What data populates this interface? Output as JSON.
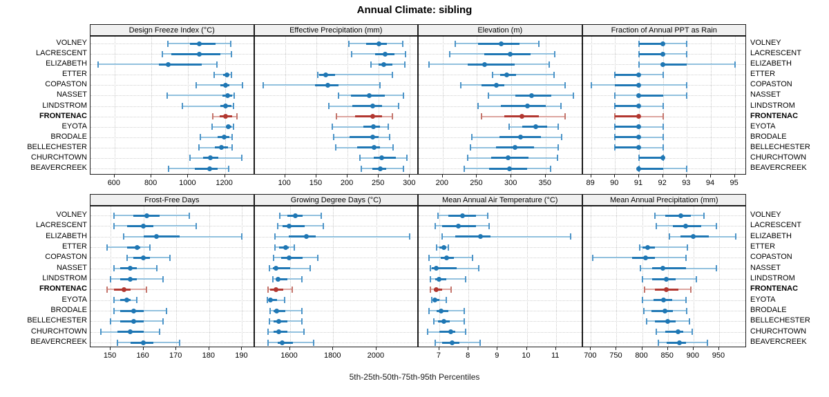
{
  "title": "Annual Climate: sibling",
  "footer": "5th-25th-50th-75th-95th Percentiles",
  "colors": {
    "blue_main": "#1f77b4",
    "blue_light": "#92c1de",
    "blue_cap": "#4c94c8",
    "red_main": "#b23730",
    "red_light": "#dda59f",
    "red_cap": "#c4756c",
    "strip_bg": "#f0f0f0",
    "grid": "#c9c9c9",
    "panel_border": "#1a1a1a"
  },
  "chart_data": {
    "type": "scatter",
    "subtype": "trellis percentile dotplot (whisker 5th-95th, bar 25th-75th, dot 50th)",
    "layout": {
      "rows": 2,
      "cols": 4,
      "grid": "dotted",
      "legend": "none"
    },
    "title": "Annual Climate: sibling",
    "caption": "5th-25th-50th-75th-95th Percentiles",
    "categories": [
      "VOLNEY",
      "LACRESCENT",
      "ELIZABETH",
      "ETTER",
      "COPASTON",
      "NASSET",
      "LINDSTROM",
      "FRONTENAC",
      "EYOTA",
      "BRODALE",
      "BELLECHESTER",
      "CHURCHTOWN",
      "BEAVERCREEK"
    ],
    "highlight": "FRONTENAC",
    "panels": [
      {
        "title": "Design Freeze Index (°C)",
        "xlim": [
          469,
          1361
        ],
        "ticks": [
          600,
          800,
          1000,
          1200
        ],
        "values": [
          [
            890,
            1010,
            1060,
            1150,
            1230
          ],
          [
            860,
            910,
            1060,
            1175,
            1235
          ],
          [
            510,
            840,
            890,
            1075,
            1155
          ],
          [
            1140,
            1190,
            1210,
            1225,
            1235
          ],
          [
            1045,
            1175,
            1205,
            1225,
            1295
          ],
          [
            885,
            1185,
            1215,
            1240,
            1250
          ],
          [
            970,
            1175,
            1205,
            1235,
            1245
          ],
          [
            1135,
            1170,
            1205,
            1240,
            1265
          ],
          [
            1130,
            1205,
            1220,
            1235,
            1245
          ],
          [
            1065,
            1160,
            1195,
            1225,
            1240
          ],
          [
            1060,
            1145,
            1180,
            1215,
            1240
          ],
          [
            1010,
            1080,
            1120,
            1165,
            1290
          ],
          [
            895,
            1035,
            1115,
            1160,
            1220
          ]
        ]
      },
      {
        "title": "Effective Precipitation (mm)",
        "xlim": [
          51,
          314
        ],
        "ticks": [
          100,
          150,
          200,
          250,
          300
        ],
        "values": [
          [
            202,
            230,
            250,
            263,
            288
          ],
          [
            207,
            244,
            260,
            275,
            293
          ],
          [
            238,
            250,
            258,
            272,
            292
          ],
          [
            152,
            155,
            165,
            180,
            272
          ],
          [
            65,
            148,
            168,
            185,
            252
          ],
          [
            186,
            205,
            235,
            260,
            290
          ],
          [
            170,
            208,
            240,
            255,
            282
          ],
          [
            182,
            212,
            240,
            255,
            272
          ],
          [
            176,
            225,
            241,
            252,
            265
          ],
          [
            178,
            203,
            240,
            250,
            268
          ],
          [
            181,
            215,
            243,
            252,
            273
          ],
          [
            220,
            242,
            255,
            278,
            295
          ],
          [
            222,
            240,
            253,
            262,
            290
          ]
        ]
      },
      {
        "title": "Elevation (m)",
        "xlim": [
          165,
          404
        ],
        "ticks": [
          200,
          250,
          300,
          350
        ],
        "values": [
          [
            218,
            252,
            285,
            312,
            340
          ],
          [
            210,
            261,
            298,
            328,
            363
          ],
          [
            180,
            236,
            261,
            305,
            355
          ],
          [
            273,
            284,
            293,
            307,
            362
          ],
          [
            226,
            257,
            278,
            290,
            378
          ],
          [
            267,
            306,
            330,
            358,
            390
          ],
          [
            252,
            285,
            323,
            350,
            372
          ],
          [
            257,
            290,
            315,
            340,
            378
          ],
          [
            297,
            316,
            336,
            352,
            368
          ],
          [
            242,
            283,
            313,
            343,
            373
          ],
          [
            240,
            278,
            305,
            333,
            368
          ],
          [
            236,
            271,
            295,
            325,
            367
          ],
          [
            231,
            268,
            297,
            323,
            357
          ]
        ]
      },
      {
        "title": "Fraction of Annual PPT as Rain",
        "xlim": [
          88.65,
          95.5
        ],
        "ticks": [
          89,
          90,
          91,
          92,
          93,
          94,
          95
        ],
        "values": [
          [
            91,
            91,
            92,
            92,
            93
          ],
          [
            91,
            91,
            92,
            92,
            93
          ],
          [
            91,
            92,
            92,
            93,
            95
          ],
          [
            90,
            90,
            91,
            91,
            92
          ],
          [
            89,
            90,
            91,
            91,
            93
          ],
          [
            90,
            91,
            91,
            92,
            93
          ],
          [
            90,
            90,
            91,
            91,
            92
          ],
          [
            90,
            90,
            91,
            91,
            92
          ],
          [
            90,
            90,
            91,
            91,
            92
          ],
          [
            90,
            90,
            91,
            91,
            92
          ],
          [
            90,
            90,
            91,
            91,
            92
          ],
          [
            91,
            91,
            92,
            92,
            92
          ],
          [
            91,
            91,
            91,
            92,
            93
          ]
        ]
      },
      {
        "title": "Frost-Free Days",
        "xlim": [
          143.9,
          193.8
        ],
        "ticks": [
          150,
          160,
          170,
          180,
          190
        ],
        "values": [
          [
            151,
            157,
            161,
            165,
            174
          ],
          [
            151,
            155,
            160,
            163,
            176
          ],
          [
            154,
            160,
            164,
            171,
            190
          ],
          [
            149,
            155,
            158,
            159,
            162
          ],
          [
            155,
            157,
            160,
            162,
            168
          ],
          [
            151,
            153,
            156,
            158,
            164
          ],
          [
            150,
            153,
            156,
            158,
            166
          ],
          [
            149,
            151,
            154,
            156,
            161
          ],
          [
            151,
            153,
            155,
            156,
            158
          ],
          [
            151,
            153,
            157,
            160,
            167
          ],
          [
            150,
            153,
            157,
            160,
            166
          ],
          [
            147,
            152,
            156,
            160,
            165
          ],
          [
            152,
            156,
            160,
            163,
            171
          ]
        ]
      },
      {
        "title": "Growing Degree Days (°C)",
        "xlim": [
          1437,
          2195
        ],
        "ticks": [
          1600,
          1800,
          2000
        ],
        "values": [
          [
            1555,
            1590,
            1625,
            1660,
            1745
          ],
          [
            1545,
            1565,
            1595,
            1670,
            1755
          ],
          [
            1530,
            1595,
            1675,
            1720,
            2155
          ],
          [
            1530,
            1550,
            1580,
            1595,
            1620
          ],
          [
            1525,
            1560,
            1595,
            1660,
            1730
          ],
          [
            1505,
            1520,
            1535,
            1600,
            1695
          ],
          [
            1520,
            1535,
            1545,
            1590,
            1655
          ],
          [
            1500,
            1510,
            1535,
            1570,
            1610
          ],
          [
            1495,
            1505,
            1510,
            1540,
            1575
          ],
          [
            1510,
            1525,
            1540,
            1580,
            1655
          ],
          [
            1505,
            1525,
            1550,
            1590,
            1655
          ],
          [
            1500,
            1525,
            1550,
            1590,
            1665
          ],
          [
            1500,
            1545,
            1565,
            1615,
            1710
          ]
        ]
      },
      {
        "title": "Mean Annual Air Temperature (°C)",
        "xlim": [
          6.29,
          11.92
        ],
        "ticks": [
          7,
          8,
          9,
          10,
          11
        ],
        "values": [
          [
            6.95,
            7.3,
            7.8,
            8.25,
            8.65
          ],
          [
            6.85,
            7.1,
            7.65,
            8.25,
            8.7
          ],
          [
            7.1,
            7.55,
            8.4,
            8.75,
            11.5
          ],
          [
            6.9,
            7.0,
            7.15,
            7.25,
            7.3
          ],
          [
            6.65,
            7.05,
            7.25,
            7.5,
            8.15
          ],
          [
            6.7,
            6.75,
            6.9,
            7.6,
            8.35
          ],
          [
            6.7,
            6.85,
            7.0,
            7.25,
            7.9
          ],
          [
            6.7,
            6.8,
            6.9,
            7.1,
            7.4
          ],
          [
            6.75,
            6.8,
            6.85,
            7.0,
            7.25
          ],
          [
            6.65,
            6.9,
            7.05,
            7.3,
            7.85
          ],
          [
            6.8,
            6.95,
            7.15,
            7.35,
            7.85
          ],
          [
            6.6,
            7.0,
            7.4,
            7.55,
            7.9
          ],
          [
            6.85,
            7.1,
            7.45,
            7.7,
            8.4
          ]
        ]
      },
      {
        "title": "Mean Annual Precipitation (mm)",
        "xlim": [
          684,
          1004
        ],
        "ticks": [
          700,
          750,
          800,
          850,
          900,
          950
        ],
        "values": [
          [
            825,
            845,
            875,
            895,
            920
          ],
          [
            828,
            860,
            885,
            915,
            945
          ],
          [
            853,
            875,
            900,
            930,
            982
          ],
          [
            795,
            800,
            810,
            825,
            888
          ],
          [
            703,
            780,
            807,
            825,
            885
          ],
          [
            797,
            820,
            840,
            885,
            945
          ],
          [
            800,
            820,
            847,
            865,
            905
          ],
          [
            805,
            825,
            847,
            870,
            895
          ],
          [
            800,
            822,
            842,
            858,
            885
          ],
          [
            803,
            818,
            845,
            860,
            887
          ],
          [
            808,
            825,
            850,
            865,
            892
          ],
          [
            827,
            845,
            870,
            880,
            898
          ],
          [
            832,
            848,
            872,
            885,
            927
          ]
        ]
      }
    ]
  }
}
